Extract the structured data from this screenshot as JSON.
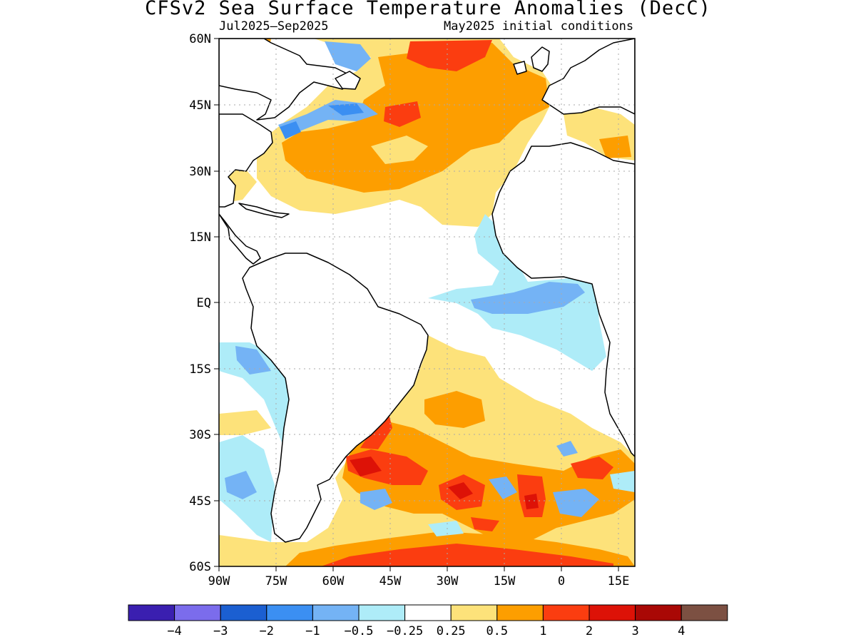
{
  "title": "CFSv2 Sea Surface Temperature Anomalies (DecC)",
  "subtitle_left": "Jul2025–Sep2025",
  "subtitle_right": "May2025 initial conditions",
  "lat_labels": [
    "60N",
    "45N",
    "30N",
    "15N",
    "EQ",
    "15S",
    "30S",
    "45S",
    "60S"
  ],
  "lon_labels": [
    "90W",
    "75W",
    "60W",
    "45W",
    "30W",
    "15W",
    "0",
    "15E"
  ],
  "colorbar": {
    "colors": [
      "#3a1fb0",
      "#7b6cec",
      "#1b5fd1",
      "#3b8ff2",
      "#74b3f5",
      "#aeecf8",
      "#ffffff",
      "#fde27a",
      "#fd9e00",
      "#fb3d10",
      "#dd1207",
      "#a90805",
      "#7c5042"
    ],
    "labels": [
      "−4",
      "−3",
      "−2",
      "−1",
      "−0.5",
      "−0.25",
      "0.25",
      "0.5",
      "1",
      "2",
      "3",
      "4"
    ]
  },
  "anomaly_colors": {
    "light_yellow": "#fde27a",
    "orange": "#fd9e00",
    "red": "#fb3d10",
    "dark_red": "#dd1207",
    "light_cyan": "#aeecf8",
    "light_blue": "#74b3f5",
    "blue": "#3b8ff2"
  }
}
